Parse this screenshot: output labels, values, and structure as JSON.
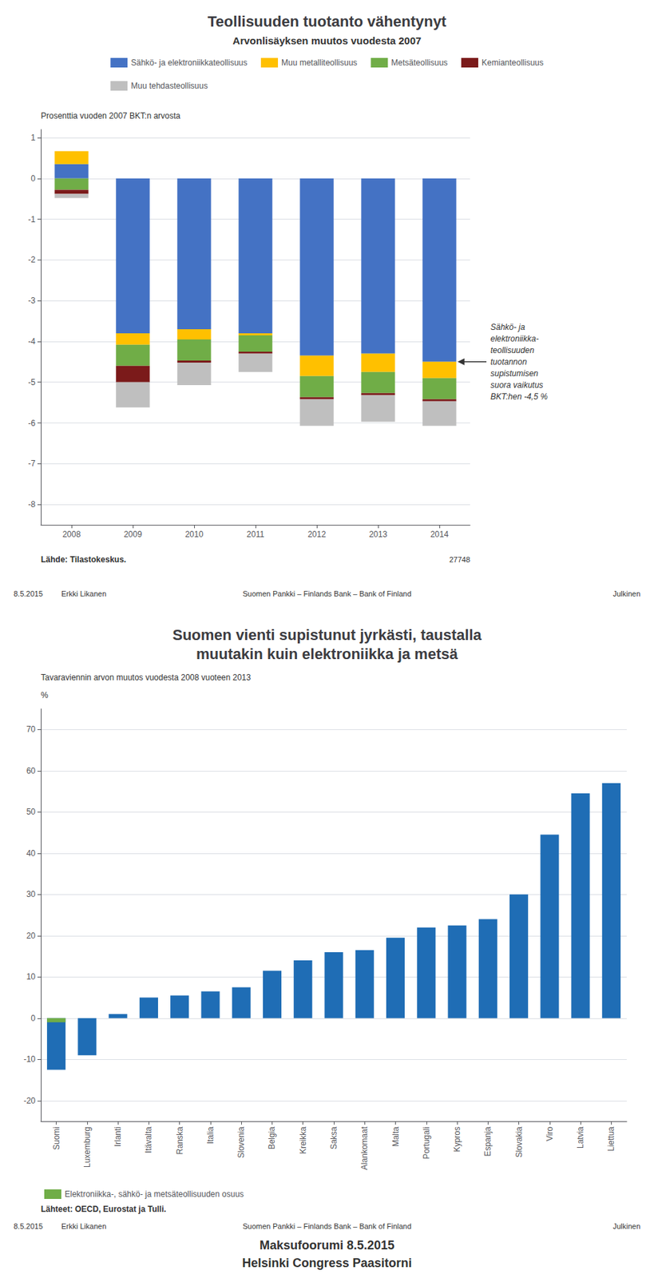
{
  "chart_data": [
    {
      "type": "bar",
      "title": "Teollisuuden tuotanto vähentynyt",
      "subtitle": "Arvonlisäyksen muutos vuodesta 2007",
      "ylabel": "Prosenttia vuoden 2007 BKT:n arvosta",
      "categories": [
        "2008",
        "2009",
        "2010",
        "2011",
        "2012",
        "2013",
        "2014"
      ],
      "series": [
        {
          "name": "Sähkö- ja elektroniikkateollisuus",
          "color": "#4472C4",
          "values": [
            0.35,
            -3.8,
            -3.7,
            -3.8,
            -4.35,
            -4.3,
            -4.5
          ]
        },
        {
          "name": "Muu metalliteollisuus",
          "color": "#FFC000",
          "values": [
            0.32,
            -0.28,
            -0.25,
            -0.05,
            -0.5,
            -0.45,
            -0.4
          ]
        },
        {
          "name": "Metsäteollisuus",
          "color": "#70AD47",
          "values": [
            -0.28,
            -0.52,
            -0.52,
            -0.4,
            -0.52,
            -0.52,
            -0.52
          ]
        },
        {
          "name": "Kemianteollisuus",
          "color": "#7B1A1A",
          "values": [
            -0.1,
            -0.4,
            -0.05,
            -0.05,
            -0.05,
            -0.05,
            -0.05
          ]
        },
        {
          "name": "Muu tehdasteollisuus",
          "color": "#BFBFBF",
          "values": [
            -0.1,
            -0.62,
            -0.55,
            -0.45,
            -0.65,
            -0.65,
            -0.6
          ]
        }
      ],
      "stacked": true,
      "ylim": [
        -8.5,
        1.2
      ],
      "yticks": [
        1,
        0,
        -1,
        -2,
        -3,
        -4,
        -5,
        -6,
        -7,
        -8
      ],
      "grid": true,
      "legend": "top",
      "annotation": {
        "text": "Sähkö- ja\nelektroniikka-\nteollisuuden\ntuotannon\nsupistumisen\nsuora vaikutus\nBKT:hen -4,5 %",
        "x": "2014",
        "y": -4.5
      },
      "source": "Lähde: Tilastokeskus.",
      "chart_id": "27748",
      "footer": [
        "8.5.2015",
        "Erkki Likanen",
        "Suomen Pankki – Finlands Bank – Bank of Finland",
        "Julkinen"
      ]
    },
    {
      "type": "bar",
      "title": "Suomen vienti supistunut jyrkästi, taustalla\nmuutakin kuin elektroniikka ja metsä",
      "subtitle": "Tavaraviennin arvon muutos vuodesta 2008 vuoteen 2013",
      "ylabel": "%",
      "categories": [
        "Suomi",
        "Luxemburg",
        "Irlanti",
        "Itävalta",
        "Ranska",
        "Italia",
        "Slovenia",
        "Belgia",
        "Kreikka",
        "Saksa",
        "Alankomaat",
        "Malta",
        "Portugali",
        "Kypros",
        "Espanja",
        "Slovakia",
        "Viro",
        "Latvia",
        "Liettua"
      ],
      "series": [
        {
          "color": "#1F6DB5",
          "values": [
            -12.5,
            -9.0,
            1.0,
            5.0,
            5.5,
            6.5,
            7.5,
            11.5,
            14.0,
            16.0,
            16.5,
            19.5,
            22.0,
            22.5,
            24.0,
            30.0,
            44.5,
            54.5,
            57.0
          ]
        },
        {
          "name": "Elektroniikka-, sähkö- ja metsäteollisuuden osuus",
          "color": "#70AD47",
          "values": [
            -1.0,
            null,
            null,
            null,
            null,
            null,
            null,
            null,
            null,
            null,
            null,
            null,
            null,
            null,
            null,
            null,
            null,
            null,
            null
          ]
        }
      ],
      "ylim": [
        -25,
        75
      ],
      "yticks": [
        -20,
        -10,
        0,
        10,
        20,
        30,
        40,
        50,
        60,
        70
      ],
      "grid": true,
      "legend": "bottom",
      "source": "Lähteet: OECD, Eurostat ja Tulli.",
      "footer": [
        "8.5.2015",
        "Erkki Likanen",
        "Suomen Pankki – Finlands Bank – Bank of Finland",
        "Julkinen"
      ],
      "caption": [
        "Maksufoorumi 8.5.2015",
        "Helsinki Congress Paasitorni"
      ]
    }
  ]
}
